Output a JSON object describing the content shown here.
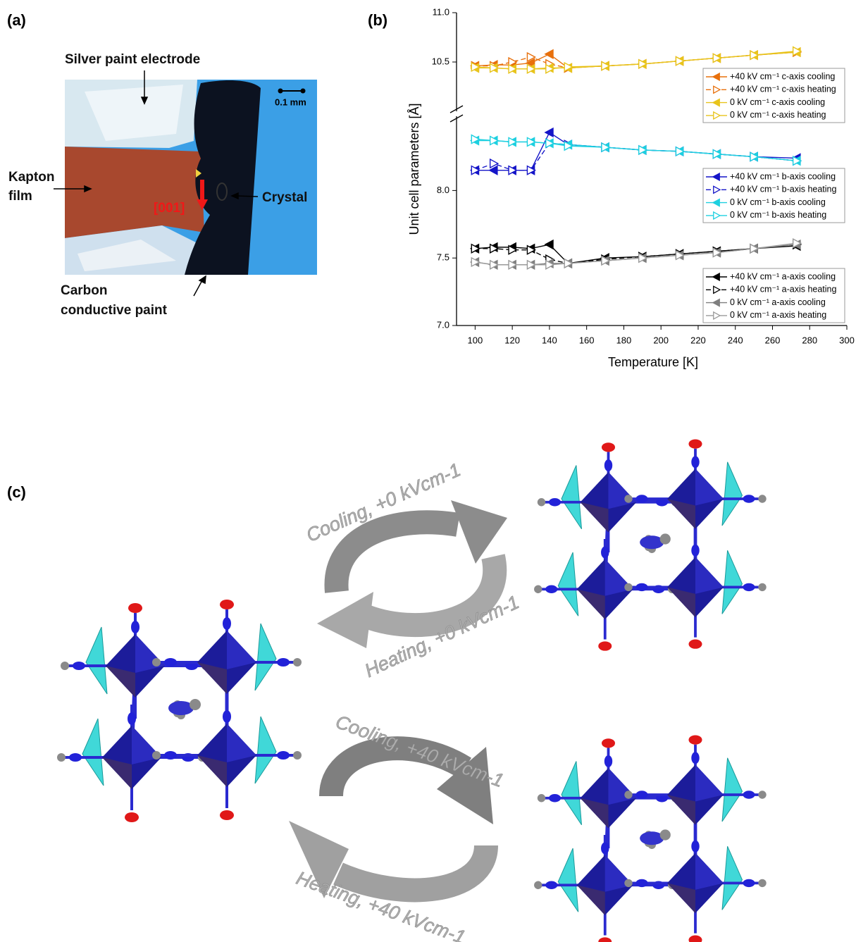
{
  "panel_a": {
    "label": "(a)",
    "silver_label": "Silver paint electrode",
    "kapton_label": [
      "Kapton",
      "film"
    ],
    "crystal_label": "Crystal",
    "carbon_label": [
      "Carbon",
      "conductive paint"
    ],
    "scale_bar": "0.1 mm",
    "direction": "[001]"
  },
  "panel_b": {
    "label": "(b)"
  },
  "chart_data": {
    "type": "line",
    "xlabel": "Temperature [K]",
    "ylabel": "Unit cell parameters [Å]",
    "x": [
      100,
      110,
      120,
      130,
      140,
      150,
      170,
      190,
      210,
      230,
      250,
      273
    ],
    "xlim": [
      90,
      300
    ],
    "xticks": [
      100,
      120,
      140,
      160,
      180,
      200,
      220,
      240,
      260,
      280,
      300
    ],
    "ylim": [
      7.0,
      11.0
    ],
    "y_break": [
      8.55,
      10.0
    ],
    "yticks": [
      {
        "value": 7,
        "label": "7.0"
      },
      7.5,
      {
        "value": 8,
        "label": "8.0"
      },
      10.5,
      {
        "value": 11,
        "label": "11.0"
      }
    ],
    "series": [
      {
        "name": "+40 kV cm⁻¹ c-axis cooling",
        "color": "#e8700c",
        "marker": "triangle-left",
        "filled": true,
        "dash": false,
        "values": [
          10.46,
          10.47,
          10.47,
          10.49,
          10.58,
          10.44,
          10.46,
          10.48,
          10.51,
          10.54,
          10.57,
          10.6
        ]
      },
      {
        "name": "+40 kV cm⁻¹ c-axis heating",
        "color": "#e8700c",
        "marker": "triangle-right",
        "filled": false,
        "dash": true,
        "values": [
          10.46,
          10.46,
          10.5,
          10.55,
          10.48,
          10.44,
          10.46,
          10.48,
          10.51,
          10.54,
          10.57,
          10.6
        ]
      },
      {
        "name": "0 kV cm⁻¹ c-axis cooling",
        "color": "#e8c41c",
        "marker": "triangle-left",
        "filled": true,
        "dash": false,
        "values": [
          10.44,
          10.44,
          10.43,
          10.43,
          10.44,
          10.44,
          10.46,
          10.48,
          10.51,
          10.54,
          10.57,
          10.6
        ]
      },
      {
        "name": "0 kV cm⁻¹ c-axis heating",
        "color": "#e8c41c",
        "marker": "triangle-right",
        "filled": false,
        "dash": false,
        "values": [
          10.45,
          10.44,
          10.43,
          10.43,
          10.43,
          10.45,
          10.46,
          10.48,
          10.51,
          10.54,
          10.57,
          10.61
        ]
      },
      {
        "name": "+40 kV cm⁻¹ b-axis cooling",
        "color": "#1515c8",
        "marker": "triangle-left",
        "filled": true,
        "dash": false,
        "values": [
          8.15,
          8.15,
          8.15,
          8.15,
          8.43,
          8.34,
          8.32,
          8.3,
          8.29,
          8.27,
          8.25,
          8.24
        ]
      },
      {
        "name": "+40 kV cm⁻¹ b-axis heating",
        "color": "#1515c8",
        "marker": "triangle-right",
        "filled": false,
        "dash": true,
        "values": [
          8.15,
          8.2,
          8.15,
          8.15,
          8.35,
          8.34,
          8.32,
          8.3,
          8.29,
          8.27,
          8.25,
          8.22
        ]
      },
      {
        "name": "0 kV cm⁻¹ b-axis cooling",
        "color": "#1ed0e0",
        "marker": "triangle-left",
        "filled": true,
        "dash": false,
        "values": [
          8.37,
          8.37,
          8.36,
          8.36,
          8.35,
          8.34,
          8.32,
          8.3,
          8.29,
          8.27,
          8.25,
          8.22
        ]
      },
      {
        "name": "0 kV cm⁻¹ b-axis heating",
        "color": "#1ed0e0",
        "marker": "triangle-right",
        "filled": false,
        "dash": false,
        "values": [
          8.38,
          8.37,
          8.36,
          8.36,
          8.35,
          8.33,
          8.32,
          8.3,
          8.29,
          8.27,
          8.25,
          8.22
        ]
      },
      {
        "name": "+40 kV cm⁻¹ a-axis cooling",
        "color": "#000000",
        "marker": "triangle-left",
        "filled": true,
        "dash": false,
        "values": [
          7.57,
          7.58,
          7.58,
          7.57,
          7.6,
          7.46,
          7.5,
          7.51,
          7.53,
          7.55,
          7.57,
          7.59
        ]
      },
      {
        "name": "+40 kV cm⁻¹ a-axis heating",
        "color": "#000000",
        "marker": "triangle-right",
        "filled": false,
        "dash": true,
        "values": [
          7.57,
          7.57,
          7.56,
          7.56,
          7.49,
          7.46,
          7.49,
          7.51,
          7.53,
          7.55,
          7.57,
          7.6
        ]
      },
      {
        "name": "0 kV cm⁻¹ a-axis cooling",
        "color": "#7f7f7f",
        "marker": "triangle-left",
        "filled": true,
        "dash": false,
        "values": [
          7.47,
          7.45,
          7.45,
          7.45,
          7.46,
          7.46,
          7.48,
          7.5,
          7.52,
          7.54,
          7.57,
          7.6
        ]
      },
      {
        "name": "0 kV cm⁻¹ a-axis heating",
        "color": "#9a9a9a",
        "marker": "triangle-right",
        "filled": false,
        "dash": false,
        "values": [
          7.47,
          7.45,
          7.45,
          7.45,
          7.45,
          7.46,
          7.48,
          7.5,
          7.52,
          7.54,
          7.57,
          7.61
        ]
      }
    ]
  },
  "panel_c": {
    "label": "(c)",
    "cooling_0": "Cooling, +0 kVcm-1",
    "heating_0": "Heating, +0 kVcm-1",
    "cooling_40": "Cooling, +40 kVcm-1",
    "heating_40": "Heating, +40 kVcm-1"
  }
}
